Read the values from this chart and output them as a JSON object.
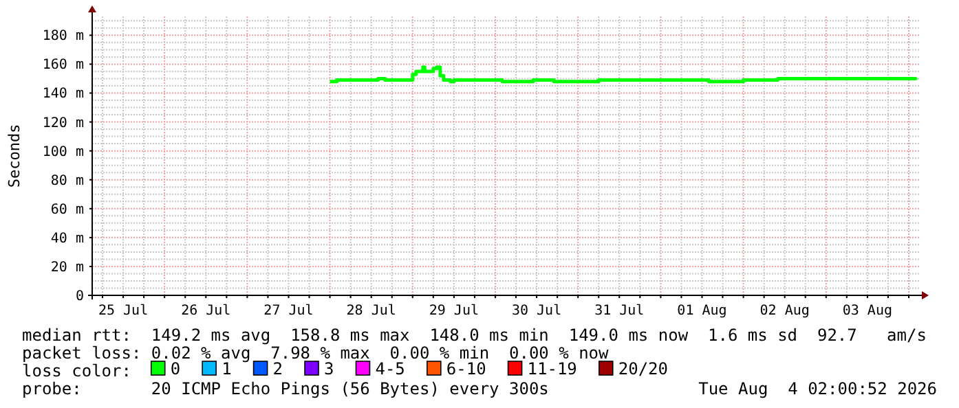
{
  "chart_data": {
    "type": "step",
    "ylabel": "Seconds",
    "legend_title": "loss color:",
    "legend": "bottom",
    "grid": true,
    "line_style": "solid",
    "marker": "none",
    "xlim": [
      "2026-07-25T03:00",
      "2026-08-04T03:00"
    ],
    "xticks": [
      {
        "value": "2026-07-25T06:00",
        "label": null
      },
      {
        "value": "2026-07-25T12:00",
        "label": "25 Jul"
      },
      {
        "value": "2026-07-25T18:00",
        "label": null
      },
      {
        "value": "2026-07-26T00:00",
        "label": null
      },
      {
        "value": "2026-07-26T06:00",
        "label": null
      },
      {
        "value": "2026-07-26T12:00",
        "label": "26 Jul"
      },
      {
        "value": "2026-07-26T18:00",
        "label": null
      },
      {
        "value": "2026-07-27T00:00",
        "label": null
      },
      {
        "value": "2026-07-27T06:00",
        "label": null
      },
      {
        "value": "2026-07-27T12:00",
        "label": "27 Jul"
      },
      {
        "value": "2026-07-27T18:00",
        "label": null
      },
      {
        "value": "2026-07-28T00:00",
        "label": null
      },
      {
        "value": "2026-07-28T06:00",
        "label": null
      },
      {
        "value": "2026-07-28T12:00",
        "label": "28 Jul"
      },
      {
        "value": "2026-07-28T18:00",
        "label": null
      },
      {
        "value": "2026-07-29T00:00",
        "label": null
      },
      {
        "value": "2026-07-29T06:00",
        "label": null
      },
      {
        "value": "2026-07-29T12:00",
        "label": "29 Jul"
      },
      {
        "value": "2026-07-29T18:00",
        "label": null
      },
      {
        "value": "2026-07-30T00:00",
        "label": null
      },
      {
        "value": "2026-07-30T06:00",
        "label": null
      },
      {
        "value": "2026-07-30T12:00",
        "label": "30 Jul"
      },
      {
        "value": "2026-07-30T18:00",
        "label": null
      },
      {
        "value": "2026-07-31T00:00",
        "label": null
      },
      {
        "value": "2026-07-31T06:00",
        "label": null
      },
      {
        "value": "2026-07-31T12:00",
        "label": "31 Jul"
      },
      {
        "value": "2026-07-31T18:00",
        "label": null
      },
      {
        "value": "2026-08-01T00:00",
        "label": null
      },
      {
        "value": "2026-08-01T06:00",
        "label": null
      },
      {
        "value": "2026-08-01T12:00",
        "label": "01 Aug"
      },
      {
        "value": "2026-08-01T18:00",
        "label": null
      },
      {
        "value": "2026-08-02T00:00",
        "label": null
      },
      {
        "value": "2026-08-02T06:00",
        "label": null
      },
      {
        "value": "2026-08-02T12:00",
        "label": "02 Aug"
      },
      {
        "value": "2026-08-02T18:00",
        "label": null
      },
      {
        "value": "2026-08-03T00:00",
        "label": null
      },
      {
        "value": "2026-08-03T06:00",
        "label": null
      },
      {
        "value": "2026-08-03T12:00",
        "label": "03 Aug"
      },
      {
        "value": "2026-08-03T18:00",
        "label": null
      },
      {
        "value": "2026-08-04T00:00",
        "label": null
      }
    ],
    "ylim": [
      0,
      193
    ],
    "yticks": [
      0,
      {
        "value": 5,
        "label": null
      },
      {
        "value": 10,
        "label": null
      },
      {
        "value": 15,
        "label": null
      },
      {
        "value": 20,
        "label": "20 m"
      },
      {
        "value": 25,
        "label": null
      },
      {
        "value": 30,
        "label": null
      },
      {
        "value": 35,
        "label": null
      },
      {
        "value": 40,
        "label": "40 m"
      },
      {
        "value": 45,
        "label": null
      },
      {
        "value": 50,
        "label": null
      },
      {
        "value": 55,
        "label": null
      },
      {
        "value": 60,
        "label": "60 m"
      },
      {
        "value": 65,
        "label": null
      },
      {
        "value": 70,
        "label": null
      },
      {
        "value": 75,
        "label": null
      },
      {
        "value": 80,
        "label": "80 m"
      },
      {
        "value": 85,
        "label": null
      },
      {
        "value": 90,
        "label": null
      },
      {
        "value": 95,
        "label": null
      },
      {
        "value": 100,
        "label": "100 m"
      },
      {
        "value": 105,
        "label": null
      },
      {
        "value": 110,
        "label": null
      },
      {
        "value": 115,
        "label": null
      },
      {
        "value": 120,
        "label": "120 m"
      },
      {
        "value": 125,
        "label": null
      },
      {
        "value": 130,
        "label": null
      },
      {
        "value": 135,
        "label": null
      },
      {
        "value": 140,
        "label": "140 m"
      },
      {
        "value": 145,
        "label": null
      },
      {
        "value": 150,
        "label": null
      },
      {
        "value": 155,
        "label": null
      },
      {
        "value": 160,
        "label": "160 m"
      },
      {
        "value": 165,
        "label": null
      },
      {
        "value": 170,
        "label": null
      },
      {
        "value": 175,
        "label": null
      },
      {
        "value": 180,
        "label": "180 m"
      },
      {
        "value": 185,
        "label": null
      },
      {
        "value": 190,
        "label": null
      }
    ],
    "series": [
      {
        "name": "0",
        "color": "#00ff00",
        "x": [
          "2026-07-28T00:00",
          "2026-07-28T02:00",
          "2026-07-28T14:00",
          "2026-07-28T16:00",
          "2026-07-29T00:00",
          "2026-07-29T01:00",
          "2026-07-29T03:00",
          "2026-07-29T03:30",
          "2026-07-29T06:00",
          "2026-07-29T07:00",
          "2026-07-29T08:00",
          "2026-07-29T09:00",
          "2026-07-29T11:00",
          "2026-07-29T12:00",
          "2026-07-30T02:00",
          "2026-07-30T11:00",
          "2026-07-30T17:00",
          "2026-07-31T06:00",
          "2026-08-01T14:00",
          "2026-08-02T00:00",
          "2026-08-02T10:00",
          "2026-08-03T20:00",
          "2026-08-04T02:00"
        ],
        "values": [
          148,
          149,
          150,
          149,
          153,
          155,
          158,
          155,
          157,
          158,
          152,
          149,
          148,
          149,
          148,
          149,
          148,
          149,
          148,
          149,
          150,
          150,
          149
        ]
      },
      {
        "name": "1",
        "color": "#00b8ff"
      },
      {
        "name": "2",
        "color": "#0059ff"
      },
      {
        "name": "3",
        "color": "#7e00ff"
      },
      {
        "name": "4-5",
        "color": "#ff00ff"
      },
      {
        "name": "6-10",
        "color": "#ff5500"
      },
      {
        "name": "11-19",
        "color": "#ff0000"
      },
      {
        "name": "20/20",
        "color": "#a10000"
      }
    ],
    "annotations": [
      "median rtt:  149.2 ms avg  158.8 ms max  148.0 ms min  149.0 ms now  1.6 ms sd  92.7   am/s",
      "packet loss: 0.02 % avg  7.98 % max  0.00 % min  0.00 % now",
      "probe:       20 ICMP Echo Pings (56 Bytes) every 300s",
      "Tue Aug  4 02:00:52 2026"
    ]
  }
}
